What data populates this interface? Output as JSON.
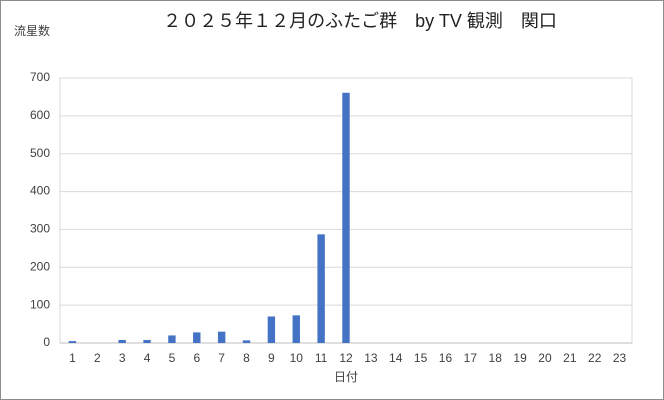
{
  "chart_data": {
    "type": "bar",
    "title": "２０２５年１２月のふたご群　by TV 観測　関口",
    "y_label": "流星数",
    "x_label": "日付",
    "categories": [
      "1",
      "2",
      "3",
      "4",
      "5",
      "6",
      "7",
      "8",
      "9",
      "10",
      "11",
      "12",
      "13",
      "14",
      "15",
      "16",
      "17",
      "18",
      "19",
      "20",
      "21",
      "22",
      "23"
    ],
    "values": [
      5,
      null,
      8,
      8,
      20,
      28,
      30,
      7,
      70,
      73,
      287,
      661,
      null,
      null,
      null,
      null,
      null,
      null,
      null,
      null,
      null,
      null,
      null
    ],
    "color": "#4472c4",
    "ylim": [
      0,
      700
    ],
    "yticks": [
      0,
      100,
      200,
      300,
      400,
      500,
      600,
      700
    ],
    "grid": true
  }
}
